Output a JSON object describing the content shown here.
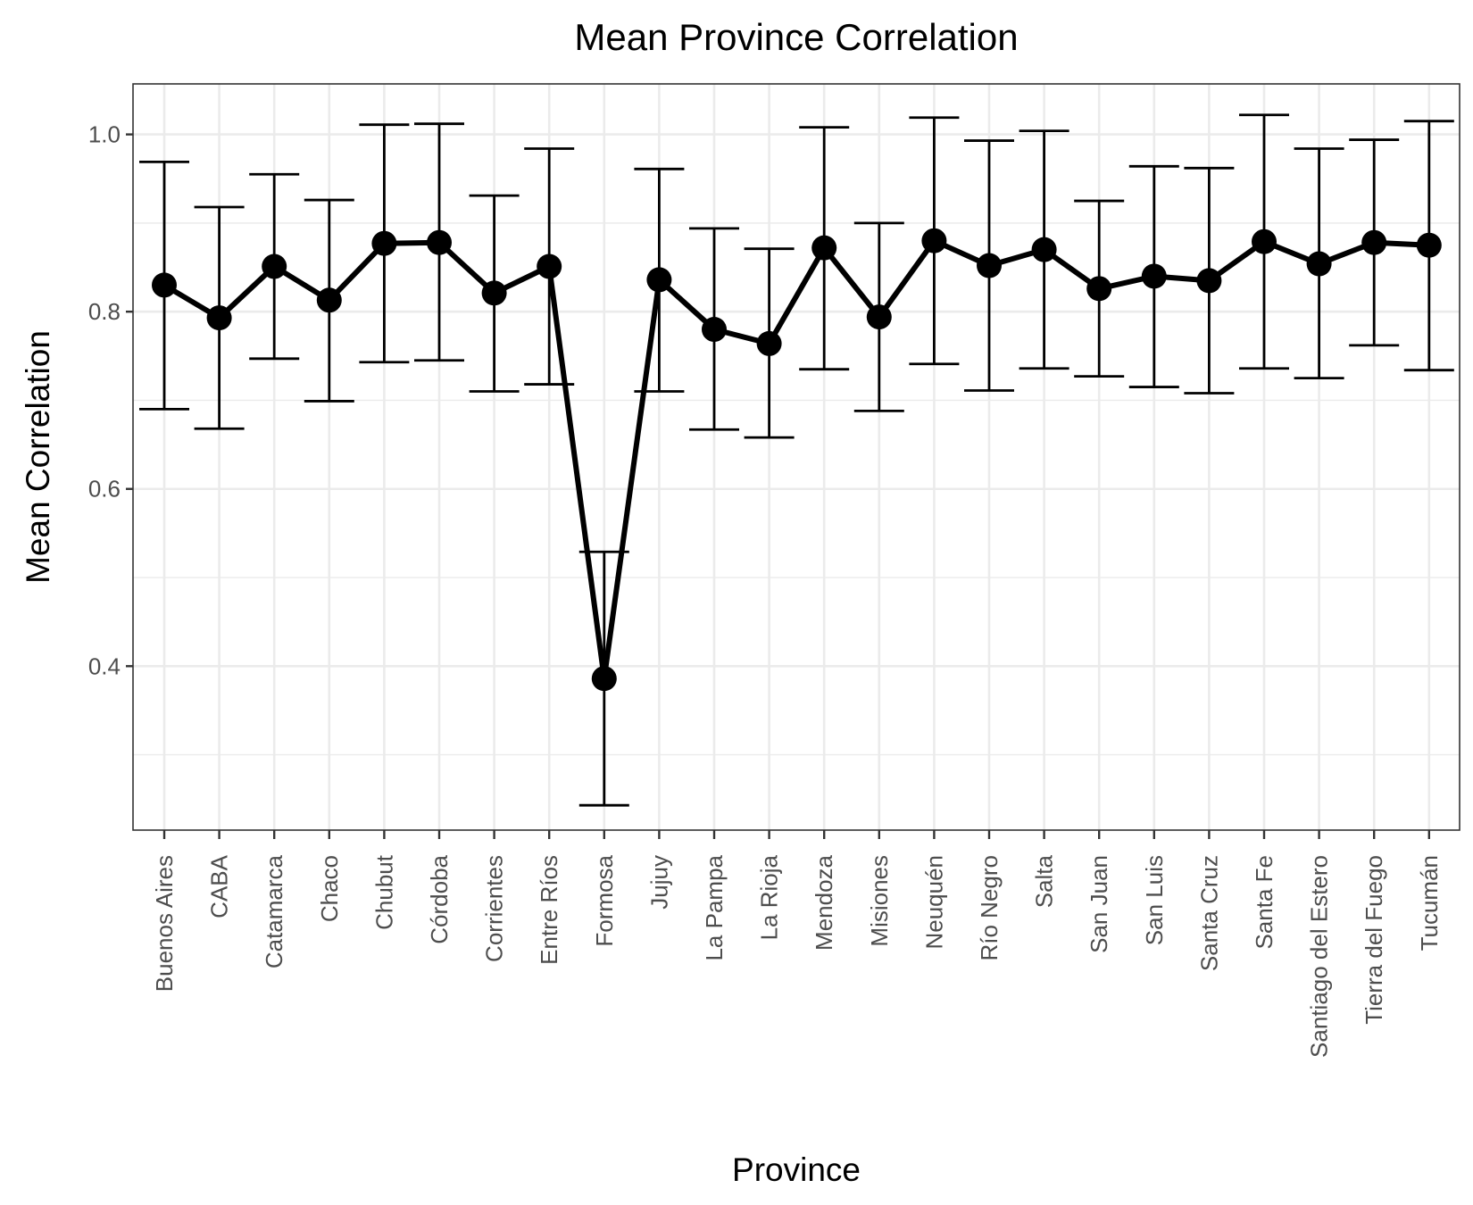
{
  "chart_data": {
    "type": "line",
    "title": "Mean Province Correlation",
    "xlabel": "Province",
    "ylabel": "Mean Correlation",
    "ylim": [
      0.215,
      1.057
    ],
    "yticks": [
      0.4,
      0.6,
      0.8,
      1.0
    ],
    "ytick_labels": [
      "0.4",
      "0.6",
      "0.8",
      "1.0"
    ],
    "grid": true,
    "categories": [
      "Buenos Aires",
      "CABA",
      "Catamarca",
      "Chaco",
      "Chubut",
      "Córdoba",
      "Corrientes",
      "Entre Ríos",
      "Formosa",
      "Jujuy",
      "La Pampa",
      "La Rioja",
      "Mendoza",
      "Misiones",
      "Neuquén",
      "Río Negro",
      "Salta",
      "San Juan",
      "San Luis",
      "Santa Cruz",
      "Santa Fe",
      "Santiago del Estero",
      "Tierra del Fuego",
      "Tucumán"
    ],
    "series": [
      {
        "values": [
          0.83,
          0.793,
          0.851,
          0.813,
          0.877,
          0.878,
          0.821,
          0.851,
          0.386,
          0.836,
          0.78,
          0.764,
          0.872,
          0.794,
          0.88,
          0.852,
          0.87,
          0.826,
          0.84,
          0.835,
          0.879,
          0.854,
          0.878,
          0.875
        ],
        "error_low": [
          0.69,
          0.668,
          0.747,
          0.699,
          0.743,
          0.745,
          0.71,
          0.718,
          0.243,
          0.71,
          0.667,
          0.658,
          0.735,
          0.688,
          0.741,
          0.711,
          0.736,
          0.727,
          0.715,
          0.708,
          0.736,
          0.725,
          0.762,
          0.734
        ],
        "error_high": [
          0.969,
          0.918,
          0.955,
          0.926,
          1.011,
          1.012,
          0.931,
          0.984,
          0.529,
          0.961,
          0.894,
          0.871,
          1.008,
          0.9,
          1.019,
          0.993,
          1.004,
          0.925,
          0.964,
          0.962,
          1.022,
          0.984,
          0.994,
          1.015
        ]
      }
    ],
    "colors": {
      "line": "#000000",
      "grid": "#ebebeb",
      "frame": "#333333",
      "tick_text": "#4d4d4d"
    }
  }
}
